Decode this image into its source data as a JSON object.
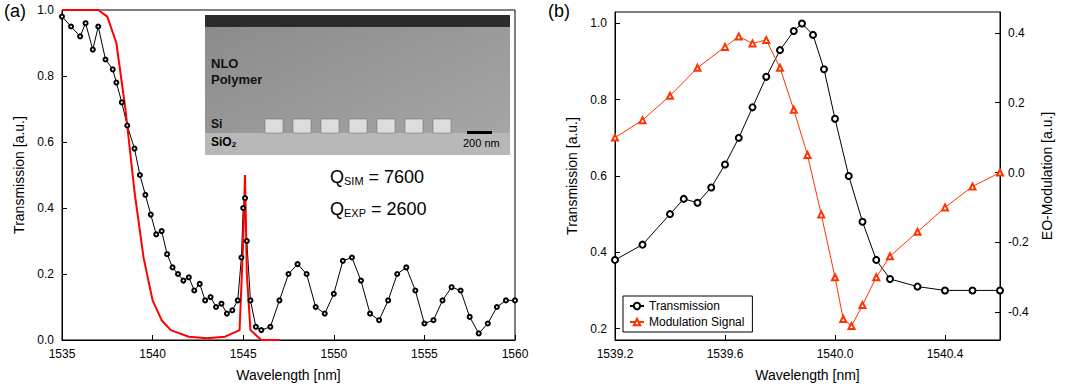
{
  "chart_data": [
    {
      "type": "line",
      "panel": "(a)",
      "x_label": "Wavelength [nm]",
      "y_label": "Transmission [a.u.]",
      "xlim": [
        1535,
        1560
      ],
      "xticks": [
        1535,
        1540,
        1545,
        1550,
        1555,
        1560
      ],
      "ylim": [
        0,
        1
      ],
      "yticks": [
        {
          "value": 0,
          "label": "0.0"
        },
        0.2,
        0.4,
        0.6,
        0.8,
        {
          "value": 1,
          "label": "1.0"
        }
      ],
      "grid": false,
      "q_labels": [
        {
          "symbol": "Q",
          "subscript": "SIM",
          "rest": " = 7600"
        },
        {
          "symbol": "Q",
          "subscript": "EXP",
          "rest": " = 2600"
        }
      ],
      "inset": {
        "polymer": "NLO Polymer",
        "silicon": "Si",
        "substrate": {
          "text": "SiO",
          "subscript": "2"
        },
        "scale_bar": "200 nm"
      },
      "series": [
        {
          "color": "#000000",
          "marker": "circle",
          "line_style": "solid",
          "x": [
            1535,
            1535.5,
            1536,
            1536.3,
            1536.7,
            1537,
            1537.4,
            1537.8,
            1538,
            1538.3,
            1538.6,
            1539,
            1539.3,
            1539.6,
            1539.9,
            1540.2,
            1540.5,
            1540.8,
            1541.1,
            1541.4,
            1541.7,
            1542,
            1542.3,
            1542.6,
            1542.9,
            1543.2,
            1543.5,
            1543.8,
            1544.1,
            1544.4,
            1544.7,
            1544.9,
            1545,
            1545.1,
            1545.2,
            1545.4,
            1545.7,
            1546,
            1546.5,
            1547,
            1547.5,
            1548,
            1548.5,
            1549,
            1549.5,
            1550,
            1550.5,
            1551,
            1551.5,
            1552,
            1552.5,
            1553,
            1553.5,
            1554,
            1554.5,
            1555,
            1555.5,
            1556,
            1556.5,
            1557,
            1557.5,
            1558,
            1558.5,
            1559,
            1559.5,
            1560
          ],
          "values": [
            0.98,
            0.95,
            0.92,
            0.96,
            0.88,
            0.95,
            0.85,
            0.82,
            0.78,
            0.72,
            0.65,
            0.58,
            0.5,
            0.44,
            0.38,
            0.32,
            0.33,
            0.26,
            0.22,
            0.2,
            0.18,
            0.19,
            0.15,
            0.17,
            0.12,
            0.13,
            0.1,
            0.11,
            0.08,
            0.09,
            0.12,
            0.25,
            0.4,
            0.43,
            0.3,
            0.12,
            0.04,
            0.03,
            0.04,
            0.12,
            0.2,
            0.23,
            0.2,
            0.1,
            0.08,
            0.14,
            0.24,
            0.25,
            0.18,
            0.08,
            0.06,
            0.12,
            0.2,
            0.22,
            0.15,
            0.05,
            0.06,
            0.12,
            0.16,
            0.15,
            0.07,
            0.02,
            0.05,
            0.1,
            0.12,
            0.12
          ]
        },
        {
          "color": "#ff0000",
          "marker": "none",
          "line_style": "solid",
          "x": [
            1535,
            1537,
            1537.5,
            1538,
            1538.5,
            1539,
            1539.5,
            1540,
            1540.5,
            1541,
            1542,
            1543,
            1544,
            1544.8,
            1545,
            1545.1,
            1545.2,
            1545.4,
            1546,
            1547
          ],
          "values": [
            1,
            1,
            0.98,
            0.9,
            0.7,
            0.45,
            0.25,
            0.12,
            0.06,
            0.03,
            0.01,
            0.005,
            0.01,
            0.03,
            0.3,
            0.5,
            0.2,
            0.03,
            0,
            0
          ]
        }
      ]
    },
    {
      "type": "line",
      "panel": "(b)",
      "x_label": "Wavelength [nm]",
      "y_label": "Transmission [a.u.]",
      "y2_label": "EO-Modulation [a.u.]",
      "xlim": [
        1539.2,
        1540.6
      ],
      "xticks": [
        1539.2,
        1539.6,
        {
          "value": 1540,
          "label": "1540.0"
        },
        1540.4
      ],
      "ylim": [
        0.17,
        1.03
      ],
      "yticks": [
        0.2,
        0.4,
        0.6,
        0.8,
        {
          "value": 1,
          "label": "1.0"
        }
      ],
      "y2lim": [
        -0.48,
        0.46
      ],
      "y2ticks": [
        -0.4,
        -0.2,
        {
          "value": 0,
          "label": "0.0"
        },
        0.2,
        0.4
      ],
      "grid": false,
      "legend": "lower left",
      "series": [
        {
          "name": "Transmission",
          "color": "#000000",
          "marker": "circle",
          "line_style": "solid",
          "axis": "y",
          "x": [
            1539.2,
            1539.3,
            1539.4,
            1539.45,
            1539.5,
            1539.55,
            1539.6,
            1539.65,
            1539.7,
            1539.75,
            1539.8,
            1539.85,
            1539.88,
            1539.92,
            1539.96,
            1540,
            1540.05,
            1540.1,
            1540.15,
            1540.2,
            1540.3,
            1540.4,
            1540.5,
            1540.6
          ],
          "values": [
            0.38,
            0.42,
            0.5,
            0.54,
            0.53,
            0.57,
            0.63,
            0.7,
            0.78,
            0.86,
            0.93,
            0.98,
            1,
            0.97,
            0.88,
            0.75,
            0.6,
            0.48,
            0.38,
            0.33,
            0.31,
            0.3,
            0.3,
            0.3
          ]
        },
        {
          "name": "Modulation Signal",
          "color": "#ff3300",
          "marker": "triangle",
          "line_style": "solid",
          "axis": "y2",
          "x": [
            1539.2,
            1539.3,
            1539.4,
            1539.5,
            1539.6,
            1539.65,
            1539.7,
            1539.75,
            1539.8,
            1539.85,
            1539.9,
            1539.95,
            1540,
            1540.03,
            1540.06,
            1540.1,
            1540.15,
            1540.2,
            1540.3,
            1540.4,
            1540.5,
            1540.6
          ],
          "values": [
            0.1,
            0.15,
            0.22,
            0.3,
            0.36,
            0.39,
            0.37,
            0.38,
            0.3,
            0.18,
            0.05,
            -0.12,
            -0.3,
            -0.42,
            -0.44,
            -0.38,
            -0.3,
            -0.24,
            -0.17,
            -0.1,
            -0.04,
            0
          ]
        }
      ]
    }
  ]
}
